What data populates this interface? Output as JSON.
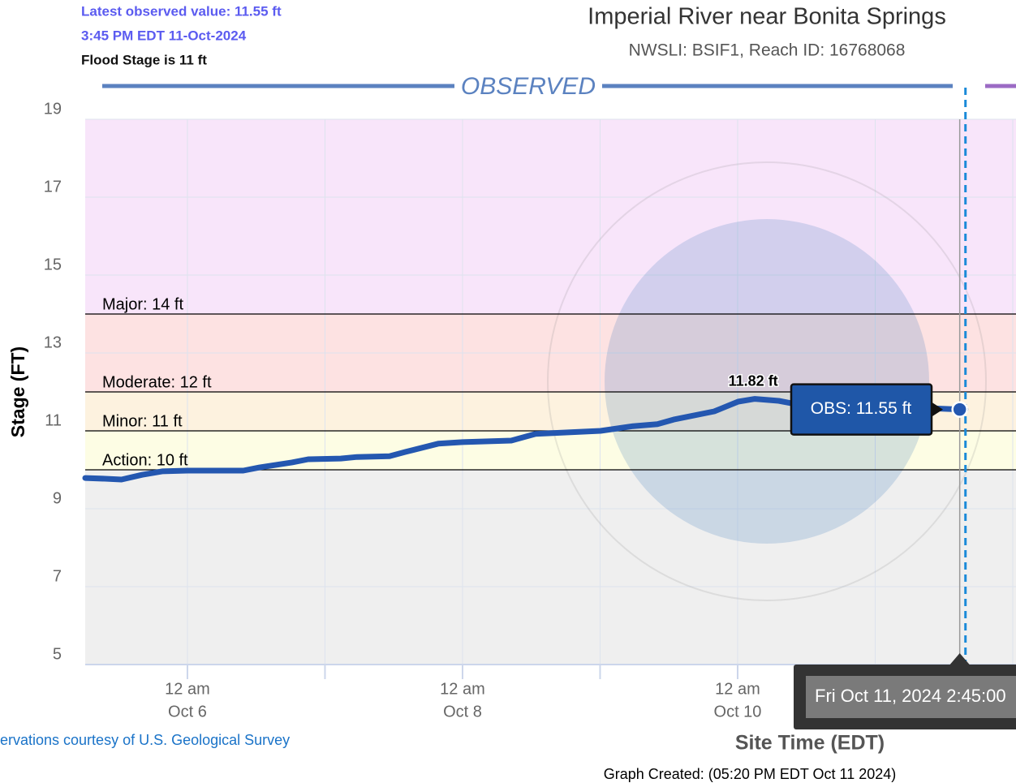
{
  "chart_data": {
    "type": "line",
    "header": [
      "Latest observed value: 11.55 ft",
      "3:45 PM EDT 11-Oct-2024",
      "Flood Stage is 11 ft"
    ],
    "title": "Imperial River near Bonita Springs",
    "subtitle": "NWSLI: BSIF1, Reach ID: 16768068",
    "section_label": "OBSERVED",
    "y_label": "Stage (FT)",
    "x_label": "Site Time (EDT)",
    "credit": "ervations courtesy of U.S. Geological Survey",
    "footer": "Graph Created: (05:20 PM EDT Oct 11 2024)",
    "ylim": [
      5,
      19
    ],
    "yticks": [
      5,
      7,
      9,
      11,
      13,
      15,
      17,
      19
    ],
    "xlim": [
      "2024-10-05T06:10",
      "2024-10-12T00:34"
    ],
    "xticks": [
      {
        "value": "2024-10-06T00:00",
        "label": [
          "12 am",
          "Oct 6"
        ]
      },
      {
        "value": "2024-10-08T00:00",
        "label": [
          "12 am",
          "Oct 8"
        ]
      },
      {
        "value": "2024-10-10T00:00",
        "label": [
          "12 am",
          "Oct 10"
        ]
      }
    ],
    "xgrid": [
      "2024-10-07T00:00",
      "2024-10-09T00:00",
      "2024-10-11T00:00",
      "2024-10-12T00:00"
    ],
    "grid": true,
    "below_color": "#efefef",
    "flood_categories": [
      {
        "label": "Action: 10 ft",
        "value": 10,
        "color": "#fdfde4"
      },
      {
        "label": "Minor: 11 ft",
        "value": 11,
        "color": "#fdf2df"
      },
      {
        "label": "Moderate: 12 ft",
        "value": 12,
        "color": "#fde2e2"
      },
      {
        "label": "Major: 14 ft",
        "value": 14,
        "color": "#f8e5fa"
      }
    ],
    "x": [
      "2024-10-05T06:10",
      "2024-10-05T09:40",
      "2024-10-05T12:30",
      "2024-10-05T16:05",
      "2024-10-05T19:35",
      "2024-10-06T00:00",
      "2024-10-06T09:45",
      "2024-10-06T12:35",
      "2024-10-06T18:15",
      "2024-10-06T21:05",
      "2024-10-07T02:45",
      "2024-10-07T05:35",
      "2024-10-07T11:15",
      "2024-10-07T14:05",
      "2024-10-07T19:45",
      "2024-10-08T00:00",
      "2024-10-08T08:30",
      "2024-10-08T12:45",
      "2024-10-09T00:05",
      "2024-10-09T05:45",
      "2024-10-09T10:00",
      "2024-10-09T12:50",
      "2024-10-09T19:55",
      "2024-10-10T00:05",
      "2024-10-10T03:00",
      "2024-10-10T07:10",
      "2024-10-10T09:20",
      "2024-10-11T10:05",
      "2024-10-11T14:45",
      "2024-10-11T15:45"
    ],
    "series": [
      {
        "name": "Observed",
        "color": "#2457b0",
        "values": [
          9.79,
          9.77,
          9.75,
          9.87,
          9.96,
          9.98,
          9.98,
          10.06,
          10.19,
          10.27,
          10.29,
          10.33,
          10.35,
          10.46,
          10.67,
          10.71,
          10.75,
          10.92,
          11.0,
          11.12,
          11.17,
          11.29,
          11.5,
          11.75,
          11.82,
          11.77,
          11.71,
          11.58,
          11.55,
          11.55
        ]
      }
    ],
    "annotations": [
      {
        "x": "2024-10-10T03:00",
        "value": 11.82,
        "label": "11.82 ft"
      }
    ],
    "obs_tooltip": {
      "x": "2024-10-11T14:45",
      "value": 11.55,
      "label": "OBS: 11.55 ft"
    },
    "hover": {
      "x": "2024-10-11T14:45",
      "label": "Fri Oct 11, 2024 2:45:00"
    },
    "current_time": "2024-10-11T15:45",
    "forecast_color": "#9b6bc4"
  }
}
